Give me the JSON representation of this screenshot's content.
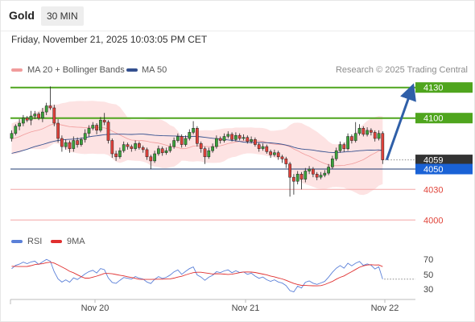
{
  "header": {
    "symbol": "Gold",
    "timeframe": "30 MIN",
    "timestamp": "Friday, November 21, 2025 10:03:05 PM CET"
  },
  "legend": {
    "ma20_label": "MA 20 + Bollinger Bands",
    "ma50_label": "MA 50",
    "credit": "Research © 2025 Trading Central"
  },
  "rsi_legend": {
    "rsi_label": "RSI",
    "ma_label": "9MA"
  },
  "colors": {
    "up": "#3aa23a",
    "down": "#e0413a",
    "wick": "#222222",
    "ma20": "#f19c9c",
    "band": "#fde3e3",
    "ma50": "#34508f",
    "rsi": "#5b80d8",
    "rsi_ma": "#e02f2f",
    "arrow": "#2f5fa8",
    "axis": "#aaaaaa"
  },
  "chart_data": {
    "type": "bar",
    "bar_style": "candlestick",
    "open": [
      4080,
      4085,
      4092,
      4095,
      4100,
      4098,
      4102,
      4104,
      4100,
      4106,
      4112,
      4110,
      4095,
      4080,
      4072,
      4076,
      4070,
      4078,
      4074,
      4079,
      4085,
      4090,
      4093,
      4088,
      4098,
      4096,
      4078,
      4065,
      4062,
      4068,
      4074,
      4072,
      4070,
      4075,
      4071,
      4069,
      4062,
      4058,
      4065,
      4070,
      4066,
      4068,
      4072,
      4078,
      4082,
      4074,
      4080,
      4086,
      4090,
      4075,
      4070,
      4062,
      4068,
      4072,
      4080,
      4078,
      4082,
      4084,
      4079,
      4083,
      4080,
      4081,
      4077,
      4079,
      4074,
      4070,
      4072,
      4067,
      4064,
      4066,
      4062,
      4060,
      4055,
      4042,
      4038,
      4045,
      4040,
      4048,
      4050,
      4045,
      4042,
      4044,
      4046,
      4052,
      4060,
      4068,
      4074,
      4070,
      4082,
      4078,
      4085,
      4090,
      4084,
      4088,
      4086,
      4080,
      4085
    ],
    "high": [
      4088,
      4094,
      4099,
      4103,
      4102,
      4107,
      4107,
      4106,
      4110,
      4115,
      4131,
      4113,
      4099,
      4083,
      4079,
      4078,
      4082,
      4081,
      4081,
      4089,
      4093,
      4096,
      4095,
      4101,
      4105,
      4098,
      4080,
      4068,
      4071,
      4077,
      4076,
      4074,
      4078,
      4077,
      4073,
      4071,
      4064,
      4068,
      4073,
      4072,
      4071,
      4075,
      4081,
      4085,
      4084,
      4083,
      4089,
      4097,
      4092,
      4077,
      4072,
      4071,
      4075,
      4083,
      4082,
      4085,
      4087,
      4086,
      4086,
      4085,
      4084,
      4083,
      4082,
      4081,
      4076,
      4075,
      4074,
      4069,
      4069,
      4068,
      4064,
      4062,
      4057,
      4045,
      4048,
      4047,
      4051,
      4053,
      4052,
      4047,
      4047,
      4049,
      4055,
      4063,
      4071,
      4077,
      4076,
      4085,
      4084,
      4096,
      4094,
      4092,
      4091,
      4090,
      4088,
      4088,
      4087
    ],
    "low": [
      4077,
      4083,
      4088,
      4092,
      4096,
      4093,
      4099,
      4098,
      4096,
      4103,
      4108,
      4092,
      4076,
      4067,
      4069,
      4066,
      4067,
      4071,
      4072,
      4076,
      4082,
      4088,
      4084,
      4086,
      4093,
      4075,
      4061,
      4058,
      4060,
      4066,
      4069,
      4067,
      4068,
      4069,
      4066,
      4059,
      4050,
      4056,
      4063,
      4063,
      4064,
      4066,
      4070,
      4076,
      4071,
      4072,
      4078,
      4084,
      4072,
      4066,
      4055,
      4060,
      4066,
      4070,
      4075,
      4076,
      4080,
      4077,
      4077,
      4078,
      4078,
      4075,
      4075,
      4072,
      4067,
      4068,
      4065,
      4061,
      4062,
      4059,
      4056,
      4051,
      4023,
      4025,
      4035,
      4030,
      4037,
      4045,
      4042,
      4039,
      4040,
      4042,
      4044,
      4050,
      4058,
      4066,
      4067,
      4068,
      4075,
      4076,
      4083,
      4082,
      4082,
      4083,
      4077,
      4078,
      4055
    ],
    "close": [
      4085,
      4092,
      4095,
      4100,
      4098,
      4102,
      4104,
      4100,
      4106,
      4112,
      4110,
      4095,
      4080,
      4072,
      4076,
      4070,
      4078,
      4074,
      4079,
      4085,
      4090,
      4093,
      4088,
      4098,
      4096,
      4078,
      4065,
      4062,
      4068,
      4074,
      4072,
      4070,
      4075,
      4071,
      4069,
      4062,
      4058,
      4065,
      4070,
      4066,
      4068,
      4072,
      4078,
      4082,
      4074,
      4080,
      4086,
      4090,
      4075,
      4070,
      4062,
      4068,
      4072,
      4080,
      4078,
      4082,
      4084,
      4079,
      4083,
      4080,
      4081,
      4077,
      4079,
      4074,
      4070,
      4072,
      4067,
      4064,
      4066,
      4062,
      4060,
      4055,
      4042,
      4038,
      4045,
      4040,
      4048,
      4050,
      4045,
      4042,
      4044,
      4046,
      4052,
      4060,
      4068,
      4074,
      4070,
      4082,
      4078,
      4085,
      4090,
      4084,
      4088,
      4086,
      4080,
      4085,
      4059
    ],
    "ylim": [
      3990,
      4140
    ],
    "x_ticks": [
      "Nov 20",
      "Nov 21",
      "Nov 22"
    ],
    "levels": [
      {
        "value": 4130,
        "label": "4130",
        "color": "#4fa51e",
        "style": "filled",
        "line_color": "#4fa51e"
      },
      {
        "value": 4100,
        "label": "4100",
        "color": "#4fa51e",
        "style": "filled",
        "line_color": "#4fa51e"
      },
      {
        "value": 4059,
        "label": "4059",
        "color": "#333333",
        "style": "filled",
        "line_color": "#888888",
        "line": "dotted"
      },
      {
        "value": 4050,
        "label": "4050",
        "color": "#1a62d6",
        "style": "filled",
        "line_color": "#1f3b70"
      },
      {
        "value": 4030,
        "label": "4030",
        "color": "#e0443a",
        "style": "text",
        "line_color": "#f4a5a5"
      },
      {
        "value": 4000,
        "label": "4000",
        "color": "#e0443a",
        "style": "text",
        "line_color": "#f4a5a5"
      }
    ],
    "rsi": {
      "ylim": [
        17,
        82
      ],
      "ticks": [
        "70",
        "50",
        "30"
      ]
    }
  }
}
